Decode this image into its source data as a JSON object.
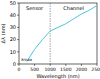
{
  "chart_data": {
    "type": "line",
    "x_label": "Wavelength (nm)",
    "y_label": "Δλ (nm)",
    "x": [
      250,
      500,
      750,
      1000,
      1250,
      1500,
      1750,
      2000,
      2250,
      2500
    ],
    "series": [
      {
        "name": "Δλ",
        "color": "#4fc3e0",
        "values": [
          2,
          12,
          20,
          27,
          30,
          33,
          37,
          41,
          44,
          48
        ]
      }
    ],
    "xlim": [
      0,
      2500
    ],
    "xticks": [
      0,
      500,
      1000,
      1500,
      2000,
      2500
    ],
    "ylim": [
      0,
      50
    ],
    "yticks": [
      0,
      10,
      20,
      30,
      40,
      50
    ],
    "reference_x": 1000,
    "annotations": [
      "Sensor",
      "Channel",
      "λmax"
    ]
  }
}
